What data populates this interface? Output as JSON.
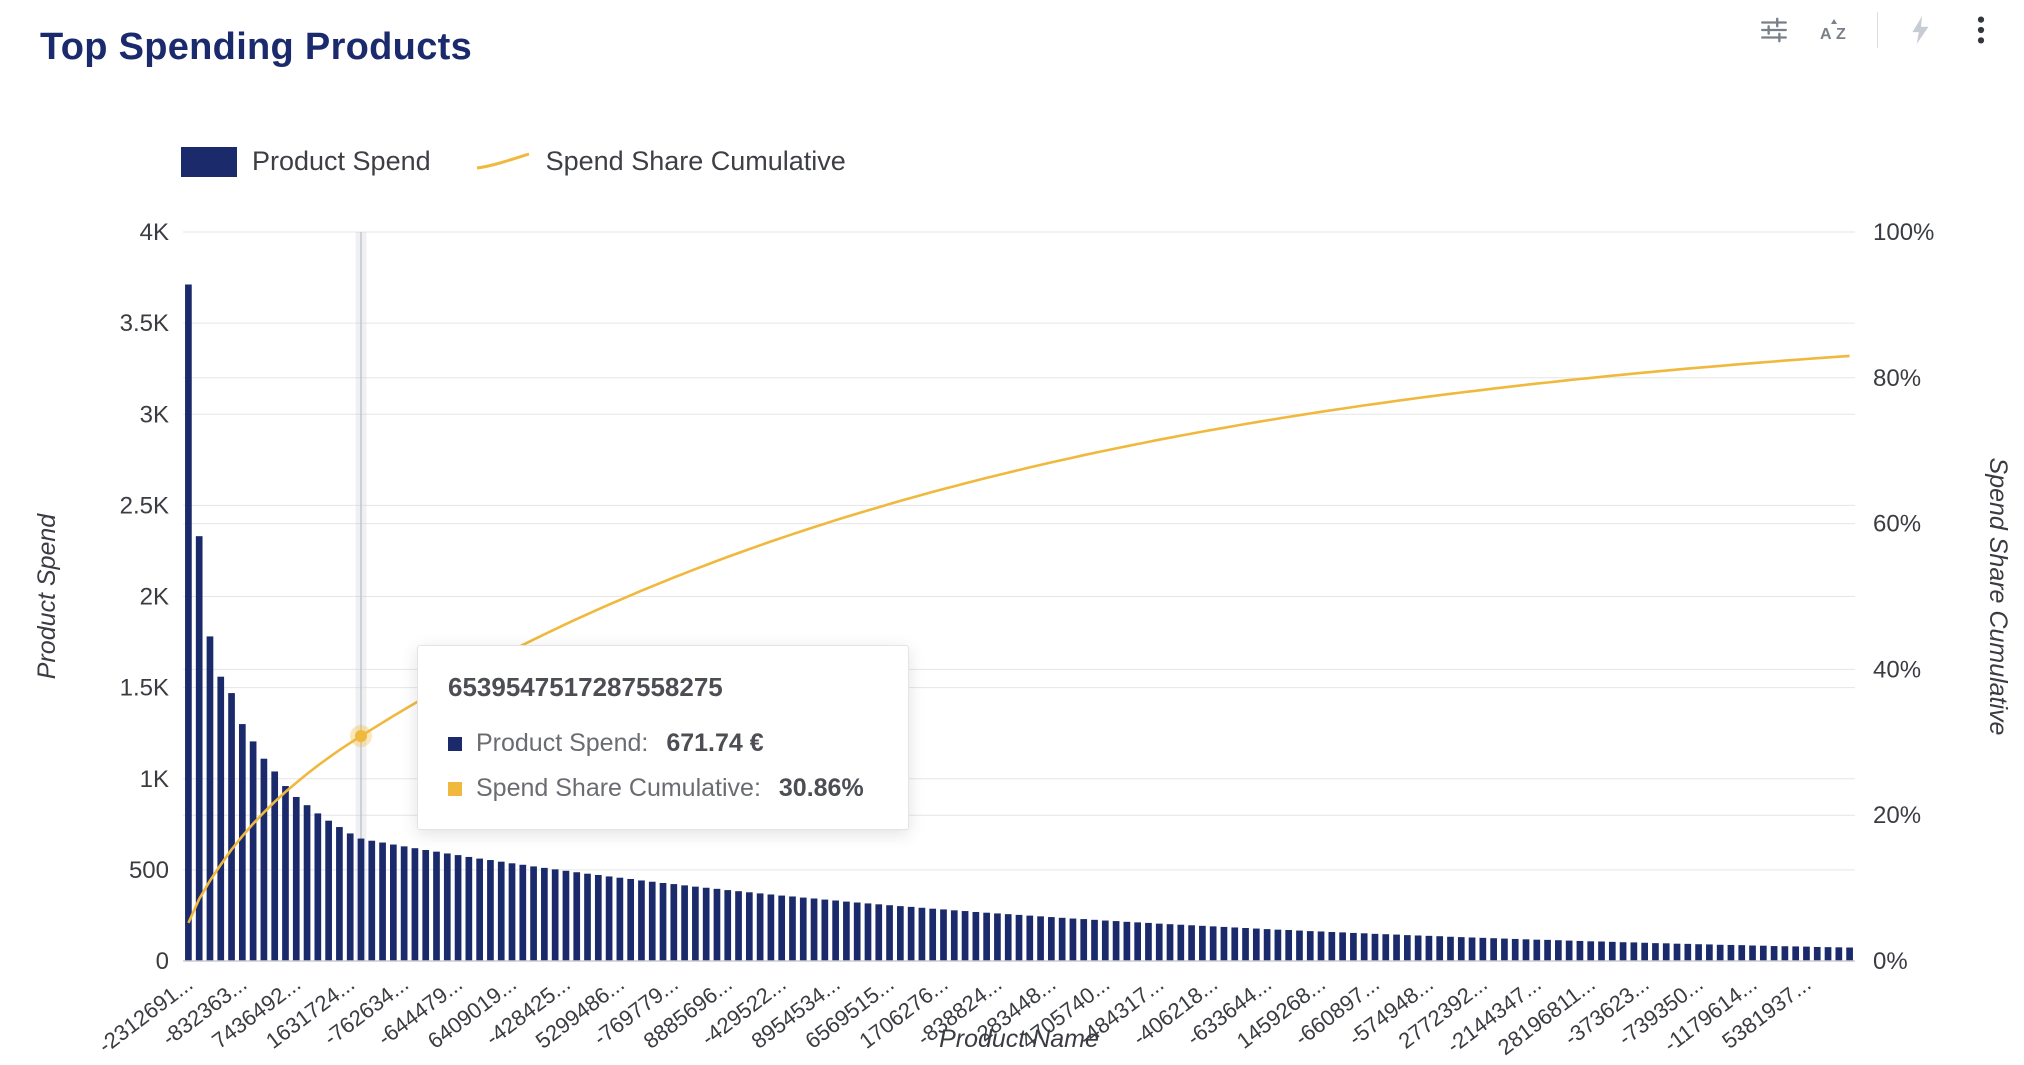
{
  "page": {
    "title": "Top Spending Products"
  },
  "toolbar": {
    "icons": [
      "filter-adjustments",
      "sort-alphabetical",
      "flash",
      "more-options"
    ]
  },
  "legend": {
    "items": [
      {
        "label": "Product Spend",
        "type": "bar",
        "color": "#1b2a6b"
      },
      {
        "label": "Spend Share Cumulative",
        "type": "line",
        "color": "#f0b93e"
      }
    ]
  },
  "tooltip": {
    "title": "6539547517287558275",
    "hover_index": 16,
    "rows": [
      {
        "label": "Product Spend:",
        "value": "671.74 €",
        "color": "#1b2a6b"
      },
      {
        "label": "Spend Share Cumulative:",
        "value": "30.86%",
        "color": "#f0b93e"
      }
    ]
  },
  "chart_data": {
    "type": "bar+line (pareto)",
    "title": "Top Spending Products",
    "xlabel": "Product Name",
    "grid": true,
    "legend_position": "top-left",
    "x_tick_every": 5,
    "x_tick_labels": [
      "-2312691...",
      "-832363...",
      "7436492...",
      "1631724...",
      "-762634...",
      "-644479...",
      "6409019...",
      "-428425...",
      "5299486...",
      "-769779...",
      "8885696...",
      "-429522...",
      "8954534...",
      "6569515...",
      "1706276...",
      "-838824...",
      "283448...",
      "4705740...",
      "-484317...",
      "-406218...",
      "-633644...",
      "1459268...",
      "-660897...",
      "-574948...",
      "2772392...",
      "-2144347...",
      "28196811...",
      "-373623...",
      "-739350...",
      "-1179614...",
      "5381937..."
    ],
    "y_left": {
      "label": "Product Spend",
      "ticks": [
        "4K",
        "3.5K",
        "3K",
        "2.5K",
        "2K",
        "1.5K",
        "1K",
        "500",
        "0"
      ],
      "min": 0,
      "max": 4000
    },
    "y_right": {
      "label": "Spend Share Cumulative",
      "ticks": [
        "100%",
        "80%",
        "60%",
        "40%",
        "20%",
        "0%"
      ],
      "min": 0,
      "max": 100
    },
    "bar_series": {
      "name": "Product Spend",
      "unit": "€",
      "values": [
        3712,
        2331,
        1781,
        1560,
        1470,
        1300,
        1205,
        1110,
        1040,
        960,
        900,
        855,
        810,
        770,
        735,
        700,
        671.74,
        660,
        650,
        639,
        629,
        619,
        609,
        600,
        590,
        581,
        571,
        562,
        554,
        545,
        536,
        528,
        519,
        511,
        503,
        495,
        487,
        479,
        472,
        464,
        457,
        450,
        442,
        435,
        428,
        422,
        415,
        408,
        402,
        396,
        389,
        383,
        377,
        371,
        365,
        359,
        354,
        348,
        343,
        337,
        332,
        326,
        321,
        316,
        311,
        306,
        301,
        297,
        292,
        287,
        283,
        278,
        274,
        269,
        265,
        261,
        257,
        253,
        249,
        245,
        241,
        237,
        233,
        230,
        226,
        222,
        219,
        215,
        212,
        209,
        205,
        202,
        199,
        196,
        193,
        190,
        187,
        184,
        181,
        178,
        175,
        172,
        170,
        167,
        164,
        162,
        159,
        157,
        154,
        152,
        149,
        147,
        145,
        142,
        140,
        138,
        136,
        133,
        131,
        129,
        127,
        125,
        123,
        121,
        119,
        117,
        116,
        114,
        112,
        110,
        108,
        107,
        105,
        103,
        102,
        100,
        98,
        97,
        95,
        94,
        92,
        91,
        89,
        88,
        87,
        85,
        84,
        82,
        81,
        80,
        79,
        77,
        76,
        75,
        74
      ]
    },
    "line_series": {
      "name": "Spend Share Cumulative",
      "unit": "%",
      "cumulative_base_total": 71000,
      "value_at_hover_pct": 30.86,
      "end_share_pct_approx": 83
    }
  },
  "colors": {
    "bar": "#1b2a6b",
    "line": "#f0b93e",
    "grid": "#e6e6e8",
    "axis_line": "#c9cbd0",
    "tick_text": "#3a3c42",
    "title": "#1a2a6c"
  }
}
